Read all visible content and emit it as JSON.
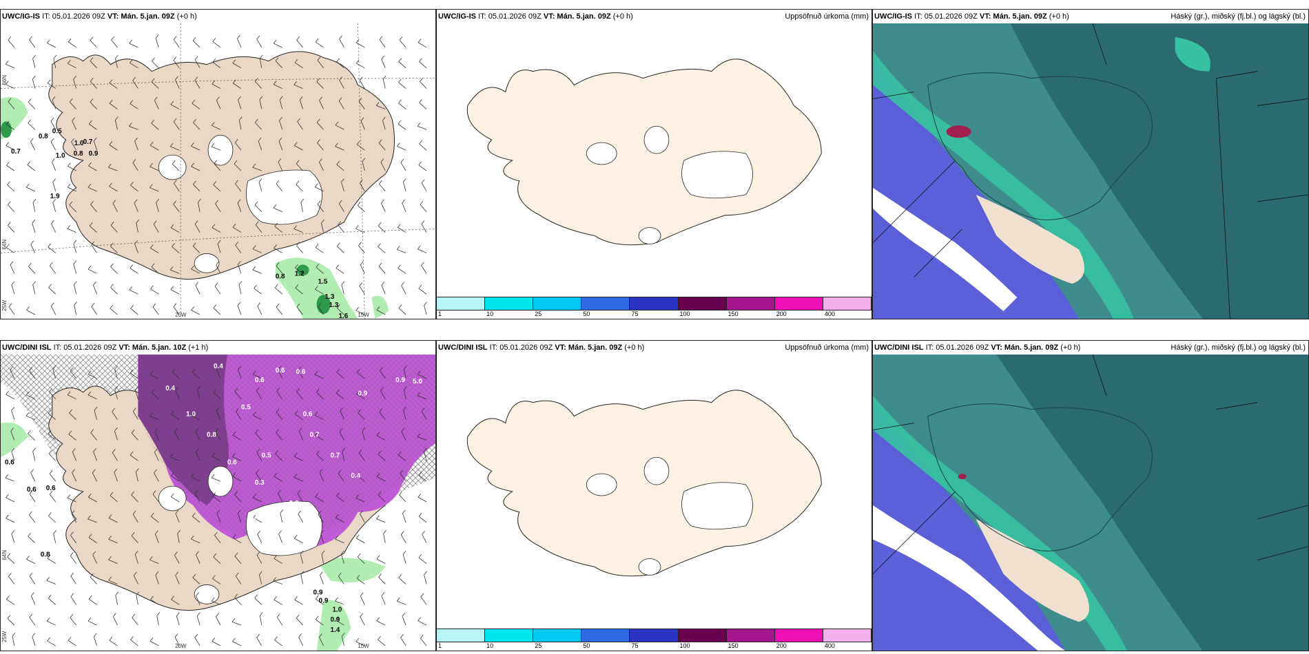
{
  "panels": [
    {
      "id": "p1",
      "model": "UWC/IG-IS",
      "it": "IT: 05.01.2026 09Z",
      "vt_label": "VT:",
      "vt": "Mán. 5.jan. 09Z",
      "lead": "(+0 h)",
      "right": ""
    },
    {
      "id": "p2",
      "model": "UWC/IG-IS",
      "it": "IT: 05.01.2026 09Z",
      "vt_label": "VT:",
      "vt": "Mán. 5.jan. 09Z",
      "lead": "(+0 h)",
      "right": "Uppsöfnuð úrkoma (mm)"
    },
    {
      "id": "p3",
      "model": "UWC/IG-IS",
      "it": "IT: 05.01.2026 09Z",
      "vt_label": "VT:",
      "vt": "Mán. 5.jan. 09Z",
      "lead": "(+0 h)",
      "right": "Háský (gr.), miðský (fj.bl.) og lágský (bl.)"
    },
    {
      "id": "p4",
      "model": "UWC/DINI ISL",
      "it": "IT: 05.01.2026 09Z",
      "vt_label": "VT:",
      "vt": "Mán. 5.jan. 10Z",
      "lead": "(+1 h)",
      "right": ""
    },
    {
      "id": "p5",
      "model": "UWC/DINI ISL",
      "it": "IT: 05.01.2026 09Z",
      "vt_label": "VT:",
      "vt": "Mán. 5.jan. 09Z",
      "lead": "(+0 h)",
      "right": "Uppsöfnuð úrkoma (mm)"
    },
    {
      "id": "p6",
      "model": "UWC/DINI ISL",
      "it": "IT: 05.01.2026 09Z",
      "vt_label": "VT:",
      "vt": "Mán. 5.jan. 09Z",
      "lead": "(+0 h)",
      "right": "Háský (gr.), miðský (fj.bl.) og lágský (bl.)"
    }
  ],
  "grid_labels": {
    "lon_20": "20W",
    "lon_15": "15W",
    "lon_25": "25W",
    "lat_66": "66N",
    "lat_64": "64N"
  },
  "colorbar": {
    "ticks": [
      "1",
      "10",
      "25",
      "50",
      "75",
      "100",
      "150",
      "200",
      "400"
    ],
    "colors": [
      "#b8f4f4",
      "#00e6ee",
      "#00c8f0",
      "#2e6be6",
      "#2b33c4",
      "#6a0050",
      "#a4168e",
      "#ee10b4",
      "#f4b0ee"
    ]
  },
  "wind_values_top": [
    "0.8",
    "0.5",
    "0.7",
    "1.0",
    "0.8",
    "1.0",
    "0.7",
    "0.9",
    "1.9",
    "0.8",
    "1.2",
    "1.5",
    "1.3",
    "1.3",
    "1.6"
  ],
  "wind_values_bottom": [
    "0.4",
    "0.4",
    "0.6",
    "0.6",
    "0.6",
    "0.5",
    "0.8",
    "0.7",
    "0.9",
    "0.6",
    "0.4",
    "0.5",
    "0.3",
    "0.7",
    "0.9",
    "1.0",
    "0.8",
    "0.7",
    "0.6",
    "0.4",
    "0.6",
    "0.8",
    "0.6",
    "0.6",
    "1.0",
    "0.9",
    "1.4",
    "0.9",
    "0.9",
    "5.0"
  ],
  "colors": {
    "land": "#f0e0d0",
    "land_precip": "#fdf1e3",
    "cloud_dark": "#2c6a72",
    "cloud_mid": "#3f8c8e",
    "cloud_green": "#36c2a0",
    "cloud_blue": "#5b5fd8",
    "magenta": "#c05ad6",
    "purple_dark": "#7a3a8a",
    "green": "#7fe07f"
  }
}
